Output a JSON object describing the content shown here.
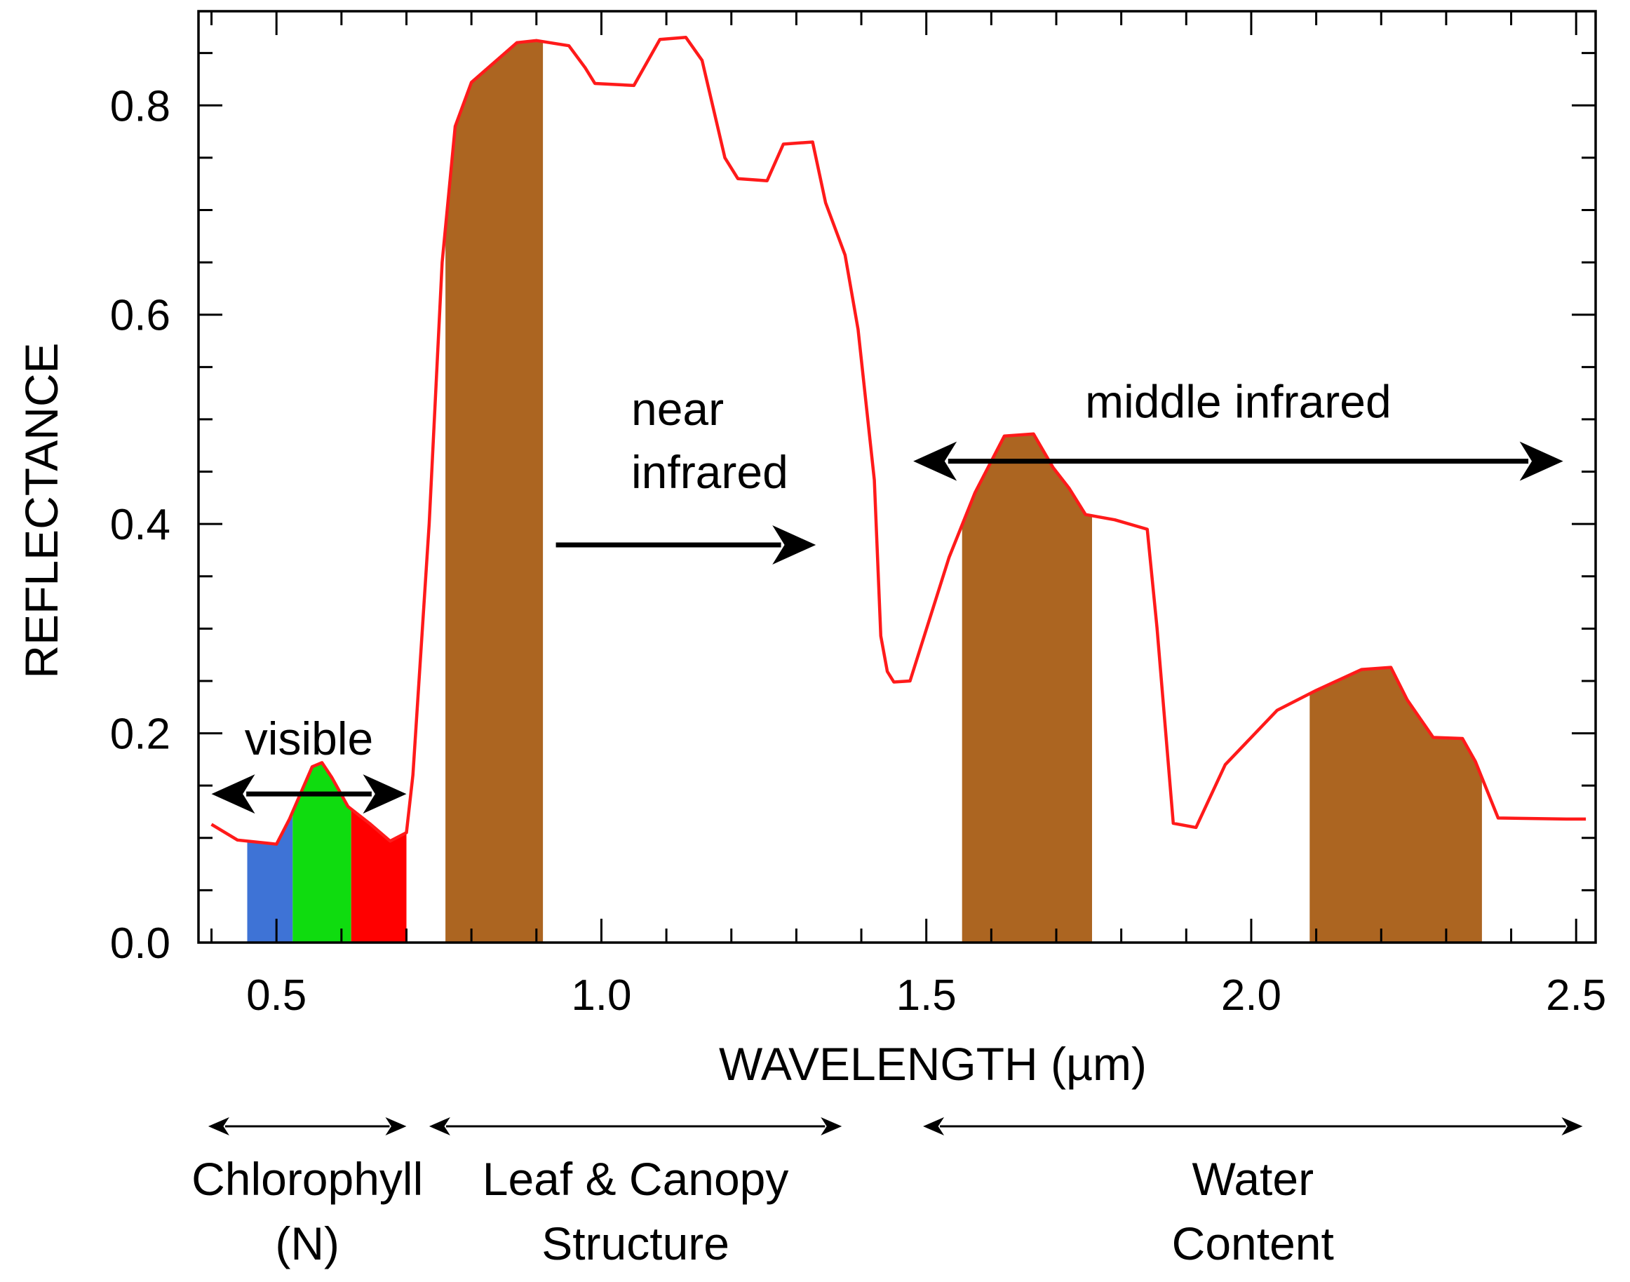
{
  "chart_data": {
    "type": "line",
    "xlabel": "WAVELENGTH (µm)",
    "ylabel": "REFLECTANCE",
    "xlim": [
      0.38,
      2.53
    ],
    "ylim": [
      0.0,
      0.89
    ],
    "x_ticks": [
      "0.5",
      "1.0",
      "1.5",
      "2.0",
      "2.5"
    ],
    "y_ticks": [
      "0.0",
      "0.2",
      "0.4",
      "0.6",
      "0.8"
    ],
    "series": [
      {
        "color": "#ff1a1a",
        "x": [
          0.4,
          0.44,
          0.5,
          0.52,
          0.555,
          0.57,
          0.585,
          0.61,
          0.645,
          0.675,
          0.7,
          0.71,
          0.735,
          0.755,
          0.775,
          0.8,
          0.87,
          0.9,
          0.95,
          0.975,
          0.99,
          1.05,
          1.09,
          1.13,
          1.155,
          1.19,
          1.21,
          1.255,
          1.28,
          1.325,
          1.345,
          1.375,
          1.395,
          1.42,
          1.43,
          1.44,
          1.45,
          1.475,
          1.535,
          1.575,
          1.62,
          1.665,
          1.695,
          1.72,
          1.745,
          1.79,
          1.84,
          1.855,
          1.88,
          1.915,
          1.96,
          2.04,
          2.1,
          2.17,
          2.215,
          2.24,
          2.28,
          2.325,
          2.345,
          2.38,
          2.485,
          2.515
        ],
        "y": [
          0.113,
          0.098,
          0.094,
          0.118,
          0.168,
          0.172,
          0.158,
          0.13,
          0.113,
          0.097,
          0.105,
          0.16,
          0.4,
          0.65,
          0.78,
          0.822,
          0.86,
          0.862,
          0.857,
          0.836,
          0.821,
          0.819,
          0.863,
          0.865,
          0.843,
          0.75,
          0.73,
          0.728,
          0.763,
          0.765,
          0.707,
          0.657,
          0.586,
          0.442,
          0.293,
          0.259,
          0.249,
          0.25,
          0.368,
          0.43,
          0.484,
          0.486,
          0.454,
          0.434,
          0.409,
          0.404,
          0.395,
          0.301,
          0.114,
          0.11,
          0.17,
          0.222,
          0.241,
          0.261,
          0.263,
          0.232,
          0.196,
          0.195,
          0.173,
          0.119,
          0.118,
          0.118
        ]
      }
    ],
    "colored_bands": [
      {
        "x_start": 0.455,
        "x_end": 0.525,
        "color": "#3e73d6"
      },
      {
        "x_start": 0.525,
        "x_end": 0.615,
        "color": "#0fdc0f"
      },
      {
        "x_start": 0.615,
        "x_end": 0.7,
        "color": "#ff0000"
      },
      {
        "x_start": 0.76,
        "x_end": 0.91,
        "color": "#ac6521"
      },
      {
        "x_start": 1.555,
        "x_end": 1.755,
        "color": "#ac6521"
      },
      {
        "x_start": 2.09,
        "x_end": 2.355,
        "color": "#ac6521"
      }
    ],
    "annotations": [
      {
        "text": "visible",
        "arrow": "both",
        "arrow_x": [
          0.4,
          0.7
        ],
        "arrow_y": 0.142
      },
      {
        "text_lines": [
          "near",
          "infrared"
        ],
        "arrow": "right",
        "arrow_x": [
          0.93,
          1.33
        ],
        "arrow_y": 0.38
      },
      {
        "text": "middle infrared",
        "arrow": "both",
        "arrow_x": [
          1.48,
          2.48
        ],
        "arrow_y": 0.46
      }
    ],
    "bottom_ranges": [
      {
        "lines": [
          "Chlorophyll",
          "(N)"
        ],
        "x_start": 0.395,
        "x_end": 0.7
      },
      {
        "lines": [
          "Leaf & Canopy",
          "Structure"
        ],
        "x_start": 0.735,
        "x_end": 1.37
      },
      {
        "lines": [
          "Water",
          "Content"
        ],
        "x_start": 1.495,
        "x_end": 2.51
      }
    ]
  }
}
